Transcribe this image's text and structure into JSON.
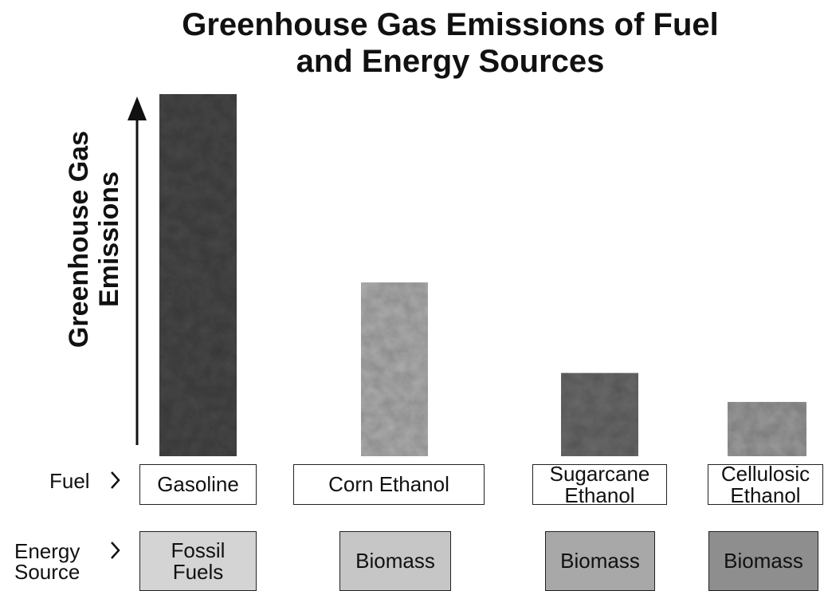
{
  "chart_data": {
    "type": "bar",
    "title": "Greenhouse Gas Emissions of Fuel and Energy Sources",
    "y_label": "Greenhouse Gas Emissions",
    "categories": [
      "Gasoline",
      "Corn Ethanol",
      "Sugarcane Ethanol",
      "Cellulosic Ethanol"
    ],
    "values": [
      100,
      48,
      23,
      15
    ],
    "colors": [
      "#4a4a4a",
      "#b4b4b4",
      "#6e6e6e",
      "#a0a0a0"
    ],
    "ylim": [
      0,
      100
    ],
    "row_labels": {
      "fuel": "Fuel",
      "energy_source": "Energy Source"
    },
    "energy_sources": [
      "Fossil Fuels",
      "Biomass",
      "Biomass",
      "Biomass"
    ],
    "energy_source_colors": [
      "#d4d4d4",
      "#c6c6c6",
      "#a8a8a8",
      "#8e8e8e"
    ]
  }
}
